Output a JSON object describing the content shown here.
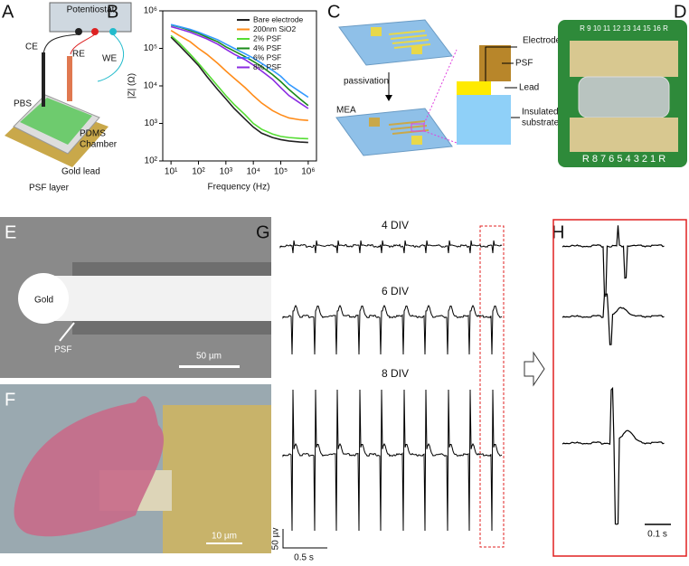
{
  "figure": {
    "panel_labels": [
      "A",
      "B",
      "C",
      "D",
      "E",
      "F",
      "G",
      "H"
    ],
    "a": {
      "instrument": "Potentiostat",
      "ce": "CE",
      "re": "RE",
      "we": "WE",
      "pbs": "PBS",
      "chamber": [
        "PDMS",
        "Chamber"
      ],
      "gold_lead": "Gold lead",
      "psf_layer": "PSF layer"
    },
    "c": {
      "passivation": "passivation",
      "mea": "MEA",
      "electrode": "Electrode",
      "psf": "PSF",
      "lead": "Lead",
      "substrate": [
        "Insulated",
        "substrate"
      ]
    },
    "d": {
      "top_row": "R 9 10 11 12 13 14 15 16 R",
      "bottom_row": "R 8 7 6 5 4 3 2 1 R"
    },
    "e": {
      "gold": "Gold",
      "psf": "PSF",
      "scale": "50 µm"
    },
    "f": {
      "scale": "10 µm"
    },
    "g": {
      "rows": [
        "4 DIV",
        "6 DIV",
        "8 DIV"
      ],
      "scale_y": "50 µv",
      "scale_x": "0.5 s"
    },
    "h": {
      "scale": "0.1 s"
    }
  },
  "chart_data": {
    "type": "line",
    "xlabel": "Frequency (Hz)",
    "ylabel": "|Z| (Ω)",
    "xscale": "log",
    "yscale": "log",
    "xlim": [
      5,
      2000000
    ],
    "ylim": [
      100,
      1000000
    ],
    "xticks": [
      {
        "value": 10,
        "label": "10¹"
      },
      {
        "value": 100,
        "label": "10²"
      },
      {
        "value": 1000,
        "label": "10³"
      },
      {
        "value": 10000,
        "label": "10⁴"
      },
      {
        "value": 100000,
        "label": "10⁵"
      },
      {
        "value": 1000000,
        "label": "10⁶"
      }
    ],
    "yticks": [
      {
        "value": 100,
        "label": "10²"
      },
      {
        "value": 1000,
        "label": "10³"
      },
      {
        "value": 10000,
        "label": "10⁴"
      },
      {
        "value": 100000,
        "label": "10⁵"
      },
      {
        "value": 1000000,
        "label": "10⁶"
      }
    ],
    "legend": "upper right",
    "x": [
      10,
      20,
      50,
      100,
      200,
      500,
      1000,
      2000,
      5000,
      10000,
      20000,
      50000,
      100000,
      200000,
      500000,
      1000000
    ],
    "series": [
      {
        "name": "Bare electrode",
        "color": "#222222",
        "values": [
          200000,
          120000,
          60000,
          35000,
          18000,
          8000,
          4500,
          2500,
          1300,
          800,
          550,
          420,
          370,
          340,
          320,
          310
        ]
      },
      {
        "name": "200nm SiO2",
        "color": "#ff8c1a",
        "values": [
          300000,
          220000,
          150000,
          100000,
          70000,
          40000,
          25000,
          16000,
          9000,
          5500,
          3500,
          2200,
          1700,
          1400,
          1250,
          1200
        ]
      },
      {
        "name": "2% PSF",
        "color": "#55dd33",
        "values": [
          220000,
          140000,
          70000,
          40000,
          22000,
          10000,
          5500,
          3200,
          1700,
          1000,
          700,
          520,
          450,
          420,
          400,
          390
        ]
      },
      {
        "name": "4% PSF",
        "color": "#1a8a1a",
        "values": [
          420000,
          370000,
          300000,
          250000,
          200000,
          150000,
          110000,
          85000,
          60000,
          45000,
          33000,
          20000,
          13000,
          8000,
          4500,
          3000
        ]
      },
      {
        "name": "6% PSF",
        "color": "#3399ff",
        "values": [
          430000,
          380000,
          320000,
          270000,
          220000,
          170000,
          130000,
          100000,
          72000,
          55000,
          40000,
          26000,
          18000,
          11000,
          7000,
          5000
        ]
      },
      {
        "name": "8% PSF",
        "color": "#8a2be2",
        "values": [
          380000,
          330000,
          270000,
          220000,
          180000,
          130000,
          95000,
          70000,
          50000,
          36000,
          25000,
          15000,
          9000,
          5500,
          3500,
          2500
        ]
      }
    ]
  }
}
